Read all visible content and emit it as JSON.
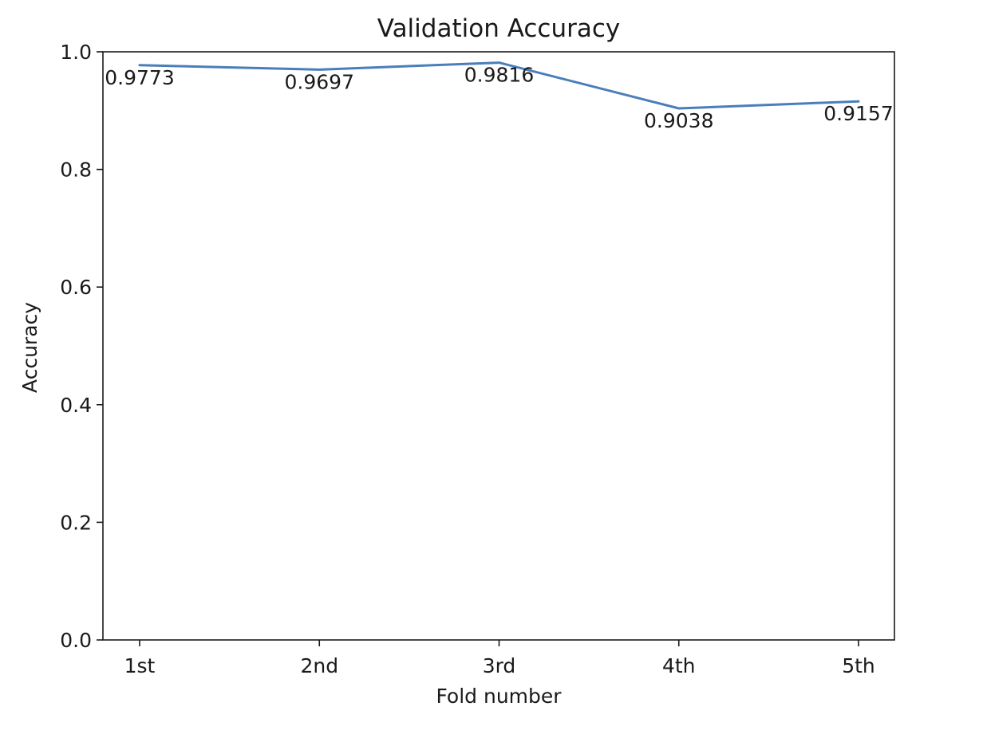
{
  "chart_data": {
    "type": "line",
    "title": "Validation Accuracy",
    "xlabel": "Fold number",
    "ylabel": "Accuracy",
    "categories": [
      "1st",
      "2nd",
      "3rd",
      "4th",
      "5th"
    ],
    "series": [
      {
        "values": [
          0.9773,
          0.9697,
          0.9816,
          0.9038,
          0.9157
        ],
        "color": "#4a7ebb"
      }
    ],
    "data_labels": [
      "0.9773",
      "0.9697",
      "0.9816",
      "0.9038",
      "0.9157"
    ],
    "ylim": [
      0.0,
      1.0
    ],
    "yticks": [
      0.0,
      0.2,
      0.4,
      0.6,
      0.8,
      1.0
    ],
    "ytick_labels": [
      "0.0",
      "0.2",
      "0.4",
      "0.6",
      "0.8",
      "1.0"
    ],
    "grid": false,
    "legend": "none"
  }
}
